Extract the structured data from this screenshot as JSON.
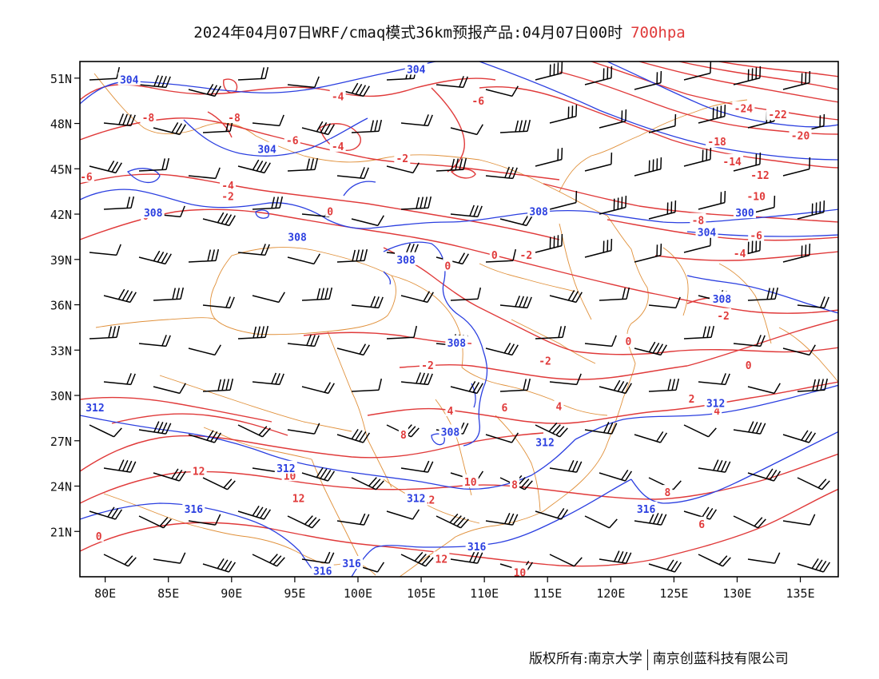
{
  "title": {
    "main": "2024年04月07日WRF/cmaq模式36km预报产品:04月07日00时",
    "level": "700hpa",
    "level_color": "#e03a3a"
  },
  "colors": {
    "temperature_contours": "#e03a3a",
    "geopotential_contours": "#2b3fe0",
    "coastline_borders": "#e0903a",
    "wind_barbs": "#000000"
  },
  "axes": {
    "lat_labels": [
      "51N",
      "48N",
      "45N",
      "42N",
      "39N",
      "36N",
      "33N",
      "30N",
      "27N",
      "24N",
      "21N"
    ],
    "lon_labels": [
      "80E",
      "85E",
      "90E",
      "95E",
      "100E",
      "105E",
      "110E",
      "115E",
      "120E",
      "125E",
      "130E",
      "135E"
    ],
    "lon_range": [
      78,
      138
    ],
    "lat_range": [
      18,
      52.1
    ]
  },
  "contour_labels": {
    "temperature": [
      {
        "text": "-8",
        "lon": 83.4,
        "lat": 48.4
      },
      {
        "text": "-8",
        "lon": 90.2,
        "lat": 48.4
      },
      {
        "text": "-4",
        "lon": 98.4,
        "lat": 49.8
      },
      {
        "text": "-6",
        "lon": 94.8,
        "lat": 46.9
      },
      {
        "text": "-4",
        "lon": 98.4,
        "lat": 46.5
      },
      {
        "text": "-2",
        "lon": 103.5,
        "lat": 45.7
      },
      {
        "text": "-6",
        "lon": 78.5,
        "lat": 44.5
      },
      {
        "text": "-4",
        "lon": 89.7,
        "lat": 43.9
      },
      {
        "text": "-2",
        "lon": 89.7,
        "lat": 43.2
      },
      {
        "text": "0",
        "lon": 83.2,
        "lat": 41.9
      },
      {
        "text": "0",
        "lon": 97.8,
        "lat": 42.2
      },
      {
        "text": "0",
        "lon": 107.1,
        "lat": 38.6
      },
      {
        "text": "0",
        "lon": 110.8,
        "lat": 39.3
      },
      {
        "text": "-2",
        "lon": 113.3,
        "lat": 39.3
      },
      {
        "text": "-6",
        "lon": 109.5,
        "lat": 49.5
      },
      {
        "text": "-24",
        "lon": 130.5,
        "lat": 49.0
      },
      {
        "text": "-22",
        "lon": 133.2,
        "lat": 48.6
      },
      {
        "text": "-20",
        "lon": 135.0,
        "lat": 47.2
      },
      {
        "text": "-18",
        "lon": 128.4,
        "lat": 46.8
      },
      {
        "text": "-14",
        "lon": 129.6,
        "lat": 45.5
      },
      {
        "text": "-12",
        "lon": 131.8,
        "lat": 44.6
      },
      {
        "text": "-10",
        "lon": 131.5,
        "lat": 43.2
      },
      {
        "text": "-8",
        "lon": 126.9,
        "lat": 41.6
      },
      {
        "text": "-6",
        "lon": 131.5,
        "lat": 40.6
      },
      {
        "text": "-4",
        "lon": 130.2,
        "lat": 39.4
      },
      {
        "text": "0",
        "lon": 128.2,
        "lat": 36.6
      },
      {
        "text": "-2",
        "lon": 128.9,
        "lat": 35.3
      },
      {
        "text": "0",
        "lon": 121.4,
        "lat": 33.6
      },
      {
        "text": "0",
        "lon": 130.9,
        "lat": 32.0
      },
      {
        "text": "-2",
        "lon": 114.8,
        "lat": 32.3
      },
      {
        "text": "-2",
        "lon": 105.5,
        "lat": 32.0
      },
      {
        "text": "2",
        "lon": 126.4,
        "lat": 29.8
      },
      {
        "text": "4",
        "lon": 128.4,
        "lat": 29.0
      },
      {
        "text": "4",
        "lon": 107.3,
        "lat": 29.0
      },
      {
        "text": "6",
        "lon": 111.6,
        "lat": 29.2
      },
      {
        "text": "4",
        "lon": 115.9,
        "lat": 29.3
      },
      {
        "text": "8",
        "lon": 103.6,
        "lat": 27.4
      },
      {
        "text": "8",
        "lon": 112.4,
        "lat": 24.1
      },
      {
        "text": "12",
        "lon": 87.4,
        "lat": 25.0
      },
      {
        "text": "10",
        "lon": 94.6,
        "lat": 24.7
      },
      {
        "text": "12",
        "lon": 95.3,
        "lat": 23.2
      },
      {
        "text": "10",
        "lon": 108.9,
        "lat": 24.3
      },
      {
        "text": "12",
        "lon": 105.6,
        "lat": 23.1
      },
      {
        "text": "0",
        "lon": 79.5,
        "lat": 20.7
      },
      {
        "text": "12",
        "lon": 106.6,
        "lat": 19.2
      },
      {
        "text": "10",
        "lon": 112.8,
        "lat": 18.3
      },
      {
        "text": "8",
        "lon": 124.5,
        "lat": 23.6
      },
      {
        "text": "6",
        "lon": 127.2,
        "lat": 21.5
      }
    ],
    "geopotential": [
      {
        "text": "304",
        "lon": 81.9,
        "lat": 50.9
      },
      {
        "text": "304",
        "lon": 104.6,
        "lat": 51.6
      },
      {
        "text": "304",
        "lon": 92.8,
        "lat": 46.3
      },
      {
        "text": "308",
        "lon": 83.8,
        "lat": 42.1
      },
      {
        "text": "308",
        "lon": 95.2,
        "lat": 40.5
      },
      {
        "text": "308",
        "lon": 103.8,
        "lat": 39.0
      },
      {
        "text": "308",
        "lon": 114.3,
        "lat": 42.2
      },
      {
        "text": "300",
        "lon": 130.6,
        "lat": 42.1
      },
      {
        "text": "304",
        "lon": 127.6,
        "lat": 40.8
      },
      {
        "text": "308",
        "lon": 128.8,
        "lat": 36.4
      },
      {
        "text": "308",
        "lon": 107.8,
        "lat": 33.5
      },
      {
        "text": "312",
        "lon": 79.2,
        "lat": 29.2
      },
      {
        "text": "312",
        "lon": 128.3,
        "lat": 29.5
      },
      {
        "text": "308",
        "lon": 107.3,
        "lat": 27.6
      },
      {
        "text": "312",
        "lon": 114.8,
        "lat": 26.9
      },
      {
        "text": "312",
        "lon": 94.3,
        "lat": 25.2
      },
      {
        "text": "312",
        "lon": 104.6,
        "lat": 23.2
      },
      {
        "text": "316",
        "lon": 87.0,
        "lat": 22.5
      },
      {
        "text": "316",
        "lon": 122.8,
        "lat": 22.5
      },
      {
        "text": "316",
        "lon": 109.4,
        "lat": 20.0
      },
      {
        "text": "316",
        "lon": 99.5,
        "lat": 18.9
      },
      {
        "text": "316",
        "lon": 97.2,
        "lat": 18.4
      }
    ]
  },
  "footer": {
    "left": "版权所有:南京大学",
    "right": "南京创蓝科技有限公司"
  }
}
